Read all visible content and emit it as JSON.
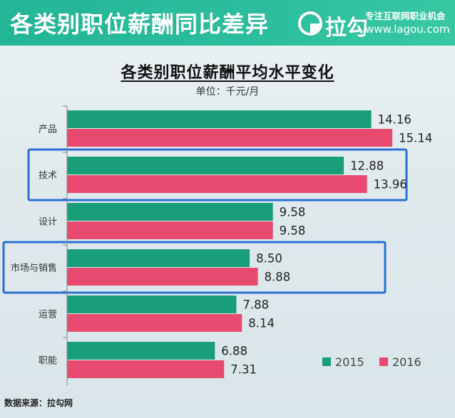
{
  "banner": {
    "title": "各类别职位薪酬同比差异",
    "logo_text": "拉勾",
    "slogan": "专注互联网职业机会",
    "site": "www.lagou.com"
  },
  "source": "数据来源：拉勾网",
  "colors": {
    "s2015": "#1a9d79",
    "s2016": "#e84a6f",
    "highlight": "#2b6fd6",
    "banner": "#2bbd9c"
  },
  "chart_data": {
    "type": "bar",
    "orientation": "horizontal",
    "title": "各类别职位薪酬平均水平变化",
    "unit": "单位：千元/月",
    "categories": [
      "产品",
      "技术",
      "设计",
      "市场与销售",
      "运营",
      "职能"
    ],
    "series": [
      {
        "name": "2015",
        "values": [
          14.16,
          12.88,
          9.58,
          8.5,
          7.88,
          6.88
        ],
        "labels": [
          "14.16",
          "12.88",
          "9.58",
          "8.50",
          "7.88",
          "6.88"
        ]
      },
      {
        "name": "2016",
        "values": [
          15.14,
          13.96,
          9.58,
          8.88,
          8.14,
          7.31
        ],
        "labels": [
          "15.14",
          "13.96",
          "9.58",
          "8.88",
          "8.14",
          "7.31"
        ]
      }
    ],
    "highlighted": [
      "技术",
      "市场与销售"
    ],
    "legend_position": "bottom-right",
    "grid": false
  }
}
